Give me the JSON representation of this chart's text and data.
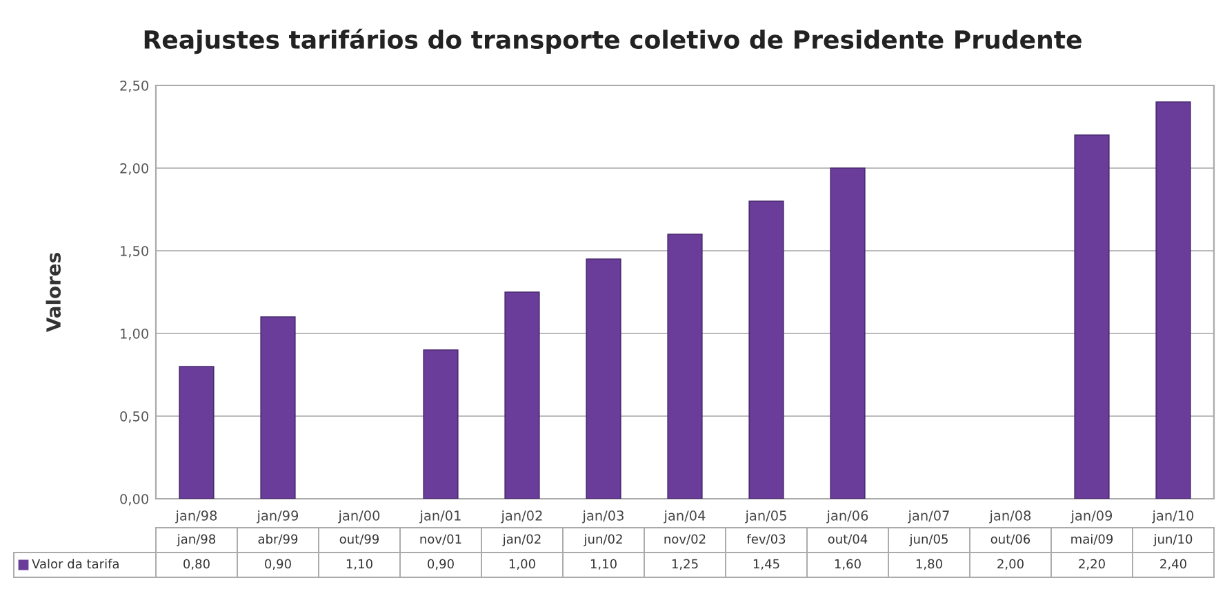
{
  "chart_data": {
    "type": "bar",
    "title": "Reajustes tarifários do transporte coletivo de Presidente Prudente",
    "ylabel": "Valores",
    "categories": [
      "jan/98",
      "jan/99",
      "jan/00",
      "jan/01",
      "jan/02",
      "jan/03",
      "jan/04",
      "jan/05",
      "jan/06",
      "jan/07",
      "jan/08",
      "jan/09",
      "jan/10"
    ],
    "series": [
      {
        "name": "Valor da tarifa",
        "color": "#6a3d9a",
        "values": [
          0.8,
          1.1,
          null,
          0.9,
          1.25,
          1.45,
          1.6,
          1.8,
          2.0,
          null,
          null,
          2.2,
          2.4
        ]
      }
    ],
    "ylim": [
      0,
      2.5
    ],
    "yticks": [
      {
        "value": 0,
        "label": "0,00"
      },
      {
        "value": 0.5,
        "label": "0,50"
      },
      {
        "value": 1.0,
        "label": "1,00"
      },
      {
        "value": 1.5,
        "label": "1,50"
      },
      {
        "value": 2.0,
        "label": "2,00"
      },
      {
        "value": 2.5,
        "label": "2,50"
      }
    ],
    "grid": "y",
    "legend": "bottom left",
    "annotations": [
      "jan/98",
      "abr/99",
      "out/99",
      "nov/01",
      "jan/02",
      "jun/02",
      "nov/02",
      "fev/03",
      "out/04",
      "jun/05",
      "out/06",
      "mai/09",
      "jun/10",
      "0,80",
      "0,90",
      "1,10",
      "0,90",
      "1,00",
      "1,10",
      "1,25",
      "1,45",
      "1,60",
      "1,80",
      "2,00",
      "2,20",
      "2,40"
    ]
  }
}
